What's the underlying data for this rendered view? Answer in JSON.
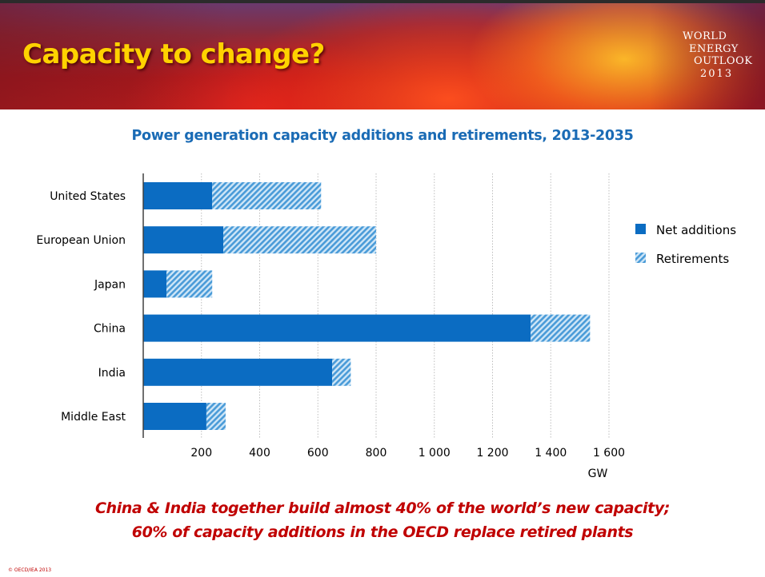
{
  "slide": {
    "title": "Capacity to change?",
    "logo_lines": [
      "WORLD",
      "ENERGY",
      "OUTLOOK",
      "2013"
    ],
    "caption_lines": [
      "China & India together build almost 40% of the world’s new capacity;",
      "60% of capacity additions in the OECD replace retired plants"
    ],
    "copyright": "© OECD/IEA 2013"
  },
  "colors": {
    "title_yellow": "#ffd200",
    "chart_title_blue": "#1a6bb5",
    "net_additions": "#0b6cc2",
    "retirements_stripe": "#4a9bd8",
    "retirements_bg": "#cfe6f7",
    "caption_red": "#c00000"
  },
  "chart_data": {
    "type": "bar",
    "orientation": "horizontal",
    "stacked": true,
    "title": "Power generation capacity additions and retirements, 2013-2035",
    "xlabel": "GW",
    "ylabel": "",
    "xlim": [
      0,
      1600
    ],
    "xticks": [
      200,
      400,
      600,
      800,
      1000,
      1200,
      1400,
      1600
    ],
    "xtick_labels": [
      "200",
      "400",
      "600",
      "800",
      "1 000",
      "1 200",
      "1 400",
      "1 600"
    ],
    "grid": "vertical dotted",
    "legend_position": "right",
    "categories": [
      "United States",
      "European Union",
      "Japan",
      "China",
      "India",
      "Middle East"
    ],
    "series": [
      {
        "name": "Net additions",
        "pattern": "solid",
        "values": [
          237,
          275,
          80,
          1331,
          649,
          217
        ]
      },
      {
        "name": "Retirements",
        "pattern": "hatched",
        "values": [
          374,
          525,
          157,
          204,
          64,
          66
        ]
      }
    ]
  }
}
